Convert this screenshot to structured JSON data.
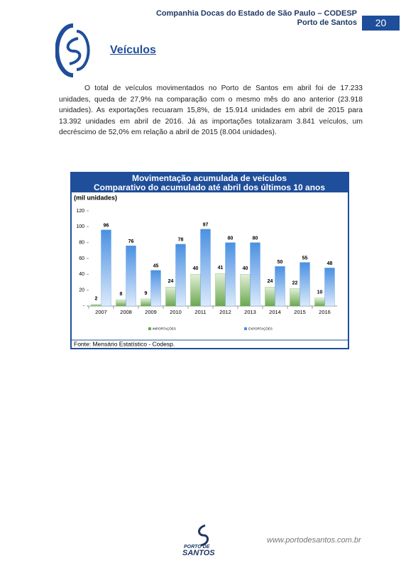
{
  "header": {
    "org": "Companhia Docas do Estado de São Paulo – CODESP",
    "port": "Porto de Santos",
    "page": "20"
  },
  "title": "Veículos",
  "body": "O total de veículos movimentados no Porto de Santos em abril foi de 17.233 unidades, queda de 27,9% na comparação com o mesmo mês do ano anterior (23.918 unidades). As exportações recuaram 15,8%, de 15.914 unidades em abril de 2015 para 13.392 unidades em abril de 2016. Já as importações totalizaram 3.841 veículos, um decréscimo de 52,0% em relação a abril de 2015 (8.004 unidades).",
  "chart_data": {
    "type": "bar",
    "title": "Movimentação acumulada de veículos",
    "subtitle": "Comparativo do acumulado até abril dos últimos 10 anos",
    "y_label": "(mil unidades)",
    "categories": [
      "2007",
      "2008",
      "2009",
      "2010",
      "2011",
      "2012",
      "2013",
      "2014",
      "2015",
      "2016"
    ],
    "series": [
      {
        "name": "IMPORTAÇÕES",
        "color": "#6aa84f",
        "values": [
          2,
          8,
          9,
          24,
          40,
          41,
          40,
          24,
          22,
          10
        ]
      },
      {
        "name": "EXPORTAÇÕES",
        "color": "#4a90e2",
        "values": [
          96,
          76,
          45,
          78,
          97,
          80,
          80,
          50,
          55,
          48
        ]
      }
    ],
    "ylim": [
      0,
      120
    ],
    "yticks": [
      {
        "value": 0,
        "label": "-"
      },
      20,
      40,
      60,
      80,
      100,
      120
    ],
    "source": "Fonte: Mensário Estatístico - Codesp."
  },
  "footer": {
    "logo_top": "PORTO DE",
    "logo_bottom": "SANTOS",
    "url": "www.portodesantos.com.br"
  }
}
